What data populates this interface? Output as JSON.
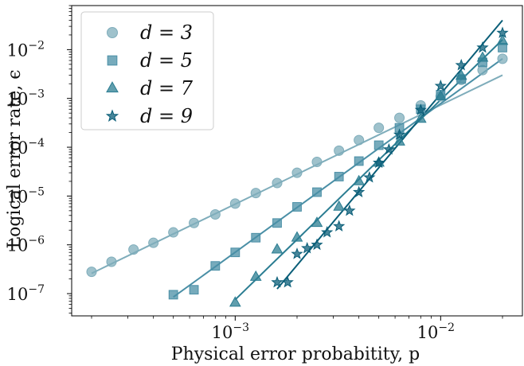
{
  "chart_data": {
    "type": "scatter",
    "x_scale": "log",
    "y_scale": "log",
    "xlim": [
      0.00016,
      0.025
    ],
    "ylim": [
      3.5e-08,
      0.08
    ],
    "xlabel": "Physical error probabitity, p",
    "ylabel": "Logical error rate, ϵ",
    "x_ticks": [
      {
        "value": 0.001,
        "base": "10",
        "exp": "−3"
      },
      {
        "value": 0.01,
        "base": "10",
        "exp": "−2"
      }
    ],
    "y_ticks": [
      {
        "value": 1e-07,
        "base": "10",
        "exp": "−7"
      },
      {
        "value": 1e-06,
        "base": "10",
        "exp": "−6"
      },
      {
        "value": 1e-05,
        "base": "10",
        "exp": "−5"
      },
      {
        "value": 0.0001,
        "base": "10",
        "exp": "−4"
      },
      {
        "value": 0.001,
        "base": "10",
        "exp": "−3"
      },
      {
        "value": 0.01,
        "base": "10",
        "exp": "−2"
      }
    ],
    "legend_position": "top-left",
    "series": [
      {
        "name": "d = 3",
        "marker": "circle",
        "color": "#7fadbb",
        "points": [
          [
            0.0002,
            2.8e-07
          ],
          [
            0.00025,
            4.5e-07
          ],
          [
            0.00032,
            8e-07
          ],
          [
            0.0004,
            1.1e-06
          ],
          [
            0.0005,
            1.8e-06
          ],
          [
            0.00063,
            2.8e-06
          ],
          [
            0.0008,
            4.2e-06
          ],
          [
            0.001,
            7e-06
          ],
          [
            0.00126,
            1.15e-05
          ],
          [
            0.0016,
            1.85e-05
          ],
          [
            0.002,
            3e-05
          ],
          [
            0.0025,
            5e-05
          ],
          [
            0.0032,
            8.5e-05
          ],
          [
            0.004,
            0.00014
          ],
          [
            0.005,
            0.00025
          ],
          [
            0.0063,
            0.0004
          ],
          [
            0.008,
            0.00072
          ],
          [
            0.01,
            0.0011
          ],
          [
            0.0126,
            0.0024
          ],
          [
            0.016,
            0.0038
          ],
          [
            0.02,
            0.0065
          ]
        ],
        "fit": [
          [
            0.0002,
            2.6e-07
          ],
          [
            0.02,
            0.003
          ]
        ]
      },
      {
        "name": "d = 5",
        "marker": "square",
        "color": "#4a8fa6",
        "points": [
          [
            0.0005,
            9.5e-08
          ],
          [
            0.00063,
            1.2e-07
          ],
          [
            0.0008,
            3.7e-07
          ],
          [
            0.001,
            7e-07
          ],
          [
            0.00126,
            1.4e-06
          ],
          [
            0.0016,
            2.8e-06
          ],
          [
            0.002,
            6e-06
          ],
          [
            0.0025,
            1.2e-05
          ],
          [
            0.0032,
            2.5e-05
          ],
          [
            0.004,
            5.2e-05
          ],
          [
            0.005,
            0.00011
          ],
          [
            0.0063,
            0.00025
          ],
          [
            0.008,
            0.0006
          ],
          [
            0.01,
            0.0012
          ],
          [
            0.0126,
            0.0025
          ],
          [
            0.016,
            0.0055
          ],
          [
            0.02,
            0.011
          ]
        ],
        "fit": [
          [
            0.0005,
            8.5e-08
          ],
          [
            0.02,
            0.0065
          ]
        ]
      },
      {
        "name": "d = 7",
        "marker": "triangle",
        "color": "#2b7d92",
        "points": [
          [
            0.001,
            6.5e-08
          ],
          [
            0.00126,
            2.2e-07
          ],
          [
            0.0016,
            8e-07
          ],
          [
            0.002,
            1.4e-06
          ],
          [
            0.0025,
            2.8e-06
          ],
          [
            0.0032,
            6e-06
          ],
          [
            0.004,
            2e-05
          ],
          [
            0.005,
            4.8e-05
          ],
          [
            0.0063,
            0.00013
          ],
          [
            0.008,
            0.00038
          ],
          [
            0.01,
            0.0011
          ],
          [
            0.0126,
            0.0029
          ],
          [
            0.016,
            0.0068
          ],
          [
            0.02,
            0.015
          ]
        ],
        "fit": [
          [
            0.001,
            7.5e-08
          ],
          [
            0.02,
            0.016
          ]
        ]
      },
      {
        "name": "d = 9",
        "marker": "star",
        "color": "#0a5e78",
        "points": [
          [
            0.0016,
            1.7e-07
          ],
          [
            0.0018,
            1.7e-07
          ],
          [
            0.002,
            6.5e-07
          ],
          [
            0.00224,
            8.5e-07
          ],
          [
            0.0025,
            1e-06
          ],
          [
            0.0028,
            1.8e-06
          ],
          [
            0.0032,
            2.4e-06
          ],
          [
            0.0036,
            5e-06
          ],
          [
            0.004,
            1.2e-05
          ],
          [
            0.0045,
            2.4e-05
          ],
          [
            0.005,
            4.8e-05
          ],
          [
            0.0056,
            9e-05
          ],
          [
            0.0063,
            0.00018
          ],
          [
            0.008,
            0.00058
          ],
          [
            0.01,
            0.0018
          ],
          [
            0.0126,
            0.0048
          ],
          [
            0.016,
            0.011
          ],
          [
            0.02,
            0.022
          ]
        ],
        "fit": [
          [
            0.0016,
            1.25e-07
          ],
          [
            0.02,
            0.04
          ]
        ]
      }
    ]
  }
}
